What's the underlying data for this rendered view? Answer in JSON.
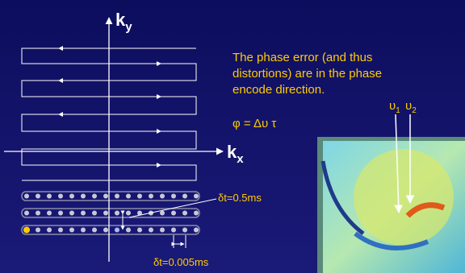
{
  "axes": {
    "ky": {
      "main": "k",
      "sub": "y"
    },
    "kx": {
      "main": "k",
      "sub": "x"
    }
  },
  "note": {
    "lines": [
      "The phase error (and thus",
      "distortions) are in the phase",
      "encode direction."
    ],
    "formula": "φ = Δυ τ"
  },
  "markers": {
    "v1": {
      "base": "υ",
      "sub": "1"
    },
    "v2": {
      "base": "υ",
      "sub": "2"
    }
  },
  "annotations": {
    "dt_line": "δt=0.5ms",
    "dt_point": "δt=0.005ms"
  }
}
